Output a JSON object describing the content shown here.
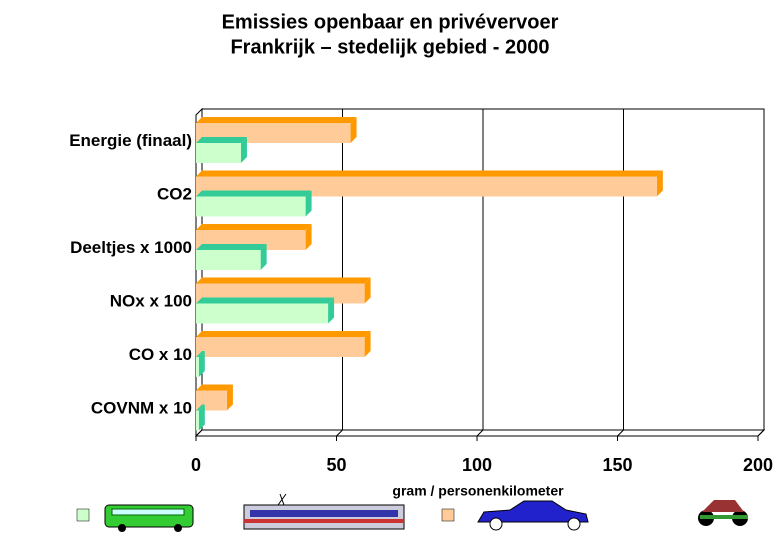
{
  "chart_data": {
    "type": "bar3d_horizontal",
    "title": "Emissies openbaar en privévervoer",
    "subtitle": "Frankrijk – stedelijk gebied - 2000",
    "x_label": "gram / personenkilometer",
    "categories": [
      "Energie (finaal)",
      "CO2",
      "Deeltjes x 1000",
      "NOx x 100",
      "CO x 10",
      "COVNM x 10"
    ],
    "series": [
      {
        "color": "#ffcc99",
        "edge_color": "#ff9900",
        "values": [
          55,
          164,
          39,
          60,
          60,
          11
        ]
      },
      {
        "color": "#ccffcc",
        "edge_color": "#33cc99",
        "values": [
          16,
          39,
          23,
          47,
          1,
          1
        ]
      }
    ],
    "xlim": [
      0,
      200
    ],
    "xticks": [
      0,
      50,
      100,
      150,
      200
    ],
    "grid": true
  }
}
